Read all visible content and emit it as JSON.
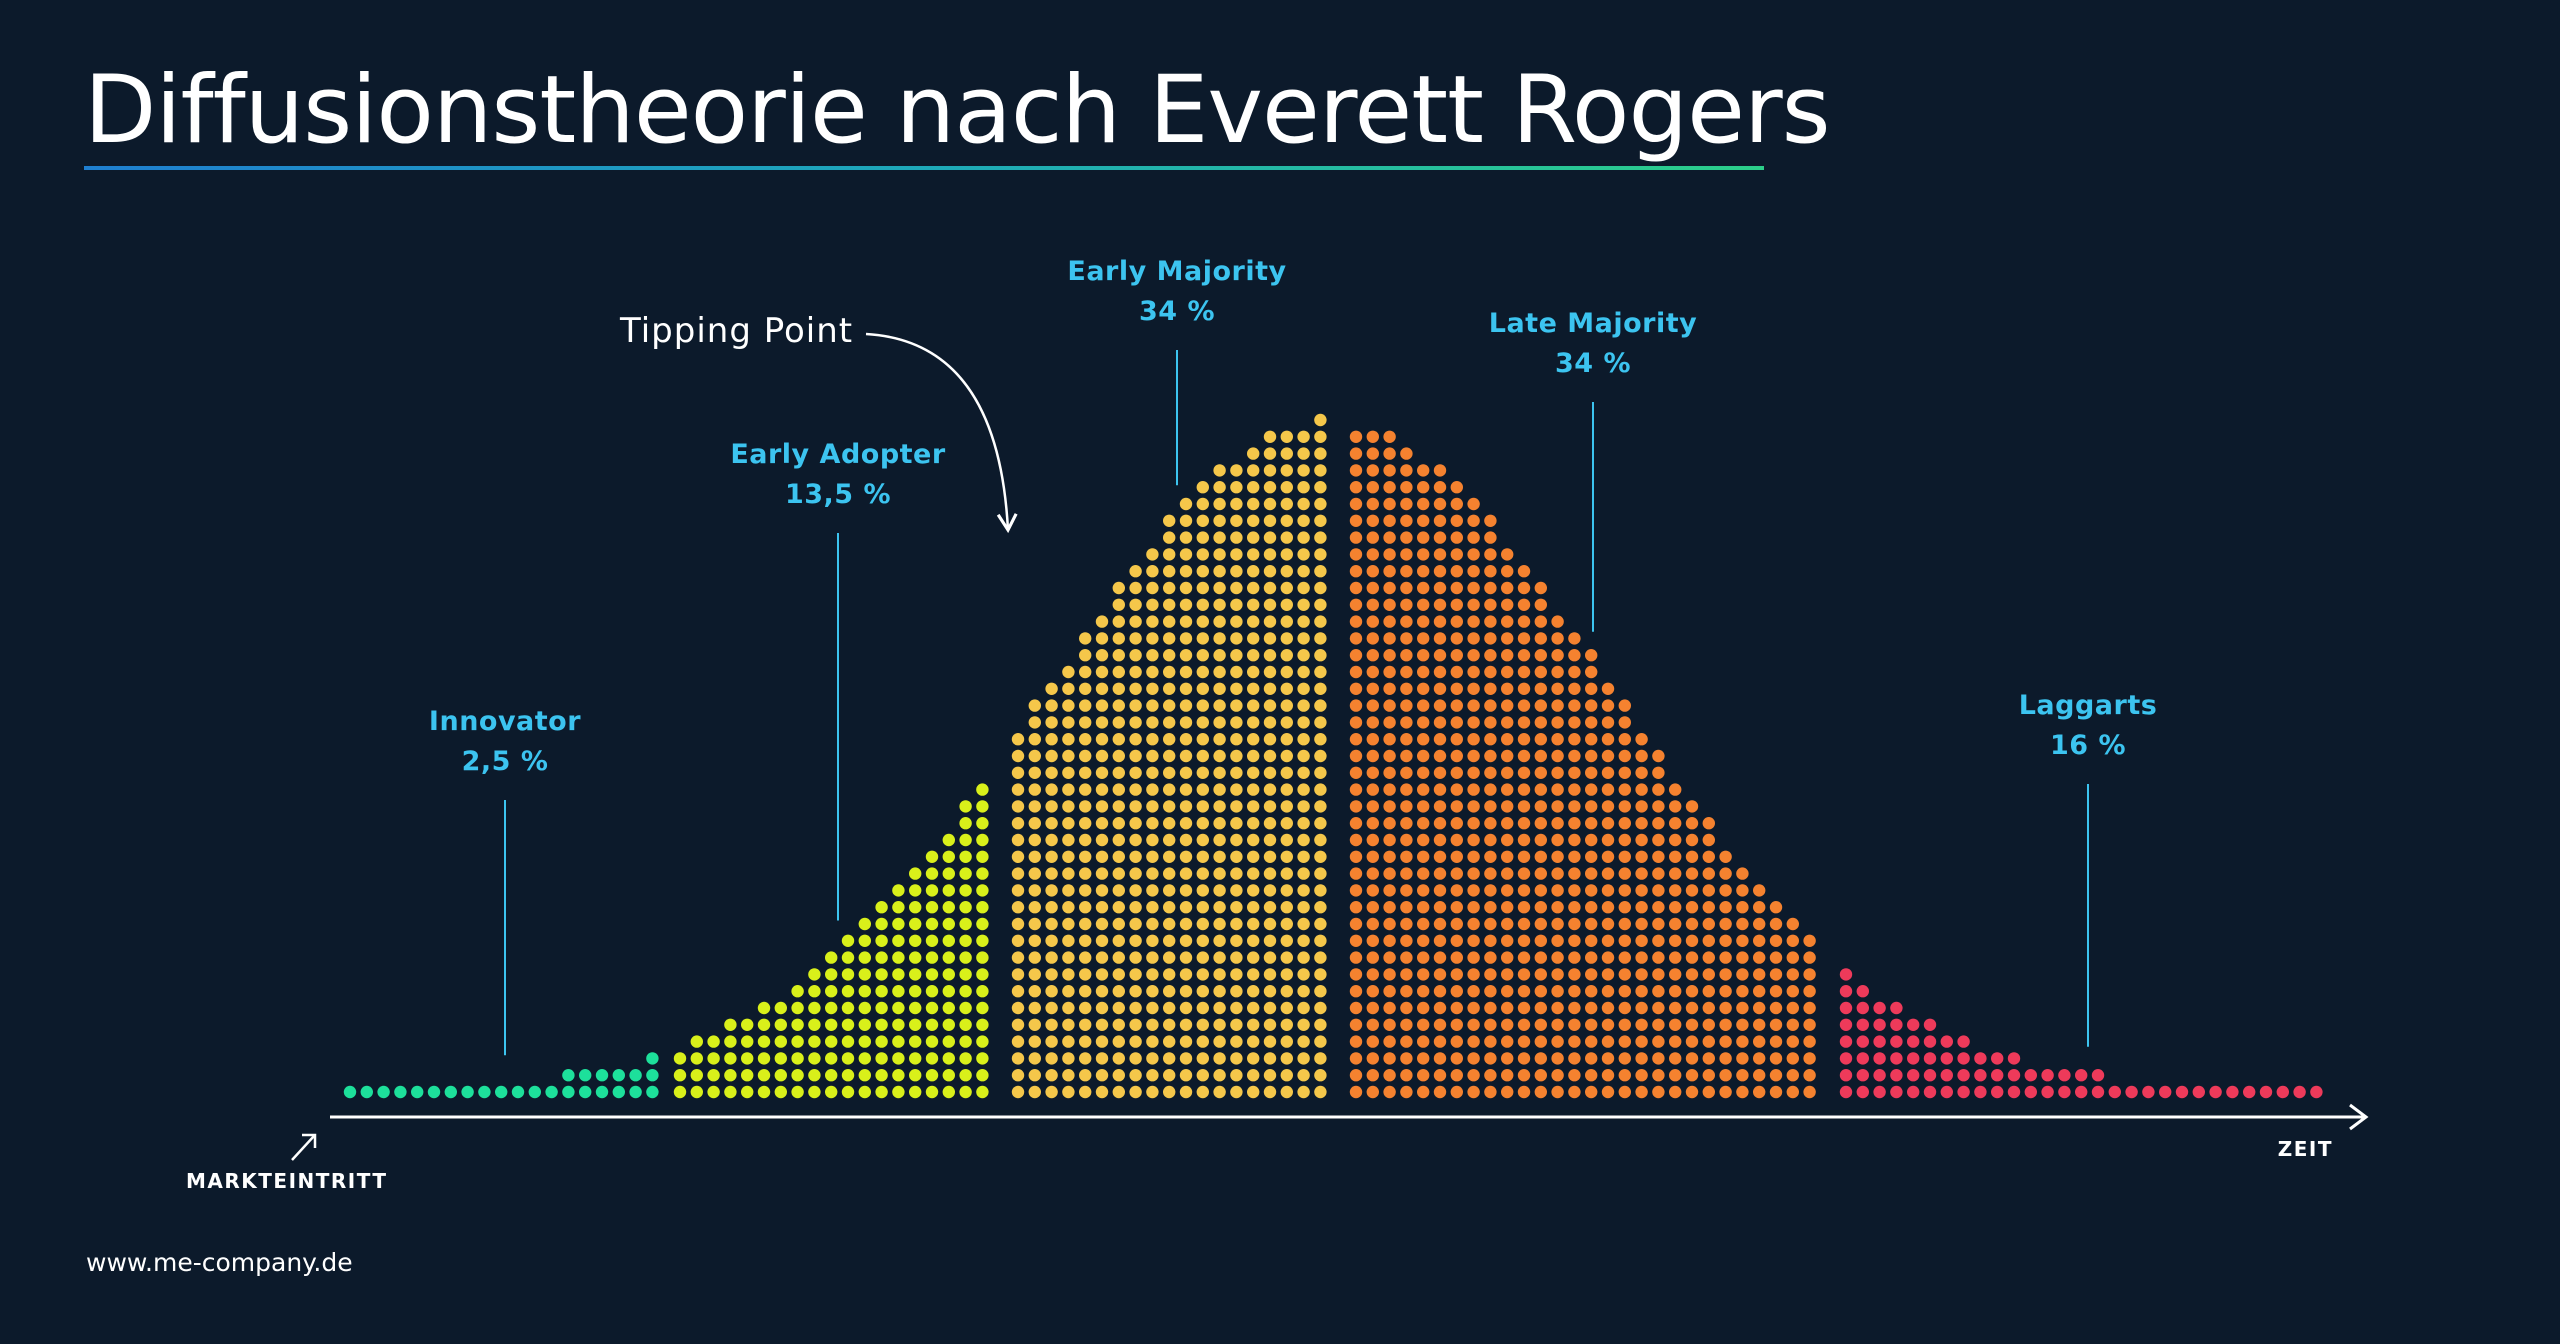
{
  "title": "Diffusionstheorie nach Everett Rogers",
  "footer": {
    "url": "www.me-company.de"
  },
  "colors": {
    "background": "#0c1a2b",
    "label": "#3cc4f0",
    "innovator": "#1de09b",
    "early_adopter": "#d9f01a",
    "early_majority": "#f5c74a",
    "late_majority": "#f5822f",
    "laggarts": "#ee3a5a"
  },
  "chart_data": {
    "type": "area",
    "distribution": "bell-curve",
    "x_axis": {
      "start_label": "MARKTEINTRITT",
      "end_label": "ZEIT"
    },
    "annotation": {
      "text": "Tipping Point",
      "position": "between Early Adopter and Early Majority"
    },
    "grid": false,
    "segments": [
      {
        "name": "Innovator",
        "value": 2.5,
        "value_label": "2,5 %",
        "color": "#1de09b"
      },
      {
        "name": "Early Adopter",
        "value": 13.5,
        "value_label": "13,5 %",
        "color": "#d9f01a"
      },
      {
        "name": "Early Majority",
        "value": 34,
        "value_label": "34 %",
        "color": "#f5c74a"
      },
      {
        "name": "Late Majority",
        "value": 34,
        "value_label": "34 %",
        "color": "#f5822f"
      },
      {
        "name": "Laggarts",
        "value": 16,
        "value_label": "16 %",
        "color": "#ee3a5a"
      }
    ]
  }
}
